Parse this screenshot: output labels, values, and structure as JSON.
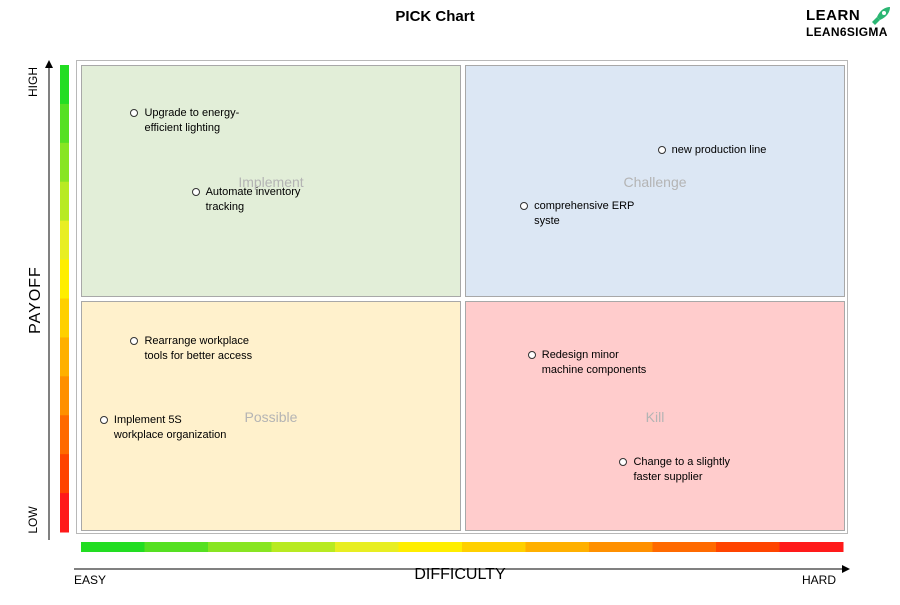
{
  "brand": {
    "line1": "LEARN",
    "line2": "LEAN6SIGMA",
    "accent_color": "#2bb673"
  },
  "chart_data": {
    "type": "scatter",
    "title": "PICK Chart",
    "xlabel": "DIFFICULTY",
    "ylabel": "PAYOFF",
    "x_ticks": {
      "low": "EASY",
      "high": "HARD"
    },
    "y_ticks": {
      "low": "LOW",
      "high": "HIGH"
    },
    "xlim": [
      0,
      1
    ],
    "ylim": [
      0,
      1
    ],
    "quadrants": [
      {
        "label": "Implement",
        "position": "top-left",
        "color": "#e2eed8"
      },
      {
        "label": "Challenge",
        "position": "top-right",
        "color": "#dce7f4"
      },
      {
        "label": "Possible",
        "position": "bottom-left",
        "color": "#fff1cc"
      },
      {
        "label": "Kill",
        "position": "bottom-right",
        "color": "#ffcccc"
      }
    ],
    "points": [
      {
        "label": "Upgrade to energy-efficient lighting",
        "x": 0.07,
        "y": 0.9
      },
      {
        "label": "Automate inventory tracking",
        "x": 0.15,
        "y": 0.73
      },
      {
        "label": "new production line",
        "x": 0.76,
        "y": 0.82
      },
      {
        "label": "comprehensive ERP syste",
        "x": 0.58,
        "y": 0.7
      },
      {
        "label": "Rearrange workplace tools for better access",
        "x": 0.07,
        "y": 0.41
      },
      {
        "label": "Implement 5S workplace organization",
        "x": 0.03,
        "y": 0.24
      },
      {
        "label": "Redesign minor machine components",
        "x": 0.59,
        "y": 0.38
      },
      {
        "label": "Change to a slightly faster supplier",
        "x": 0.71,
        "y": 0.15
      }
    ]
  }
}
